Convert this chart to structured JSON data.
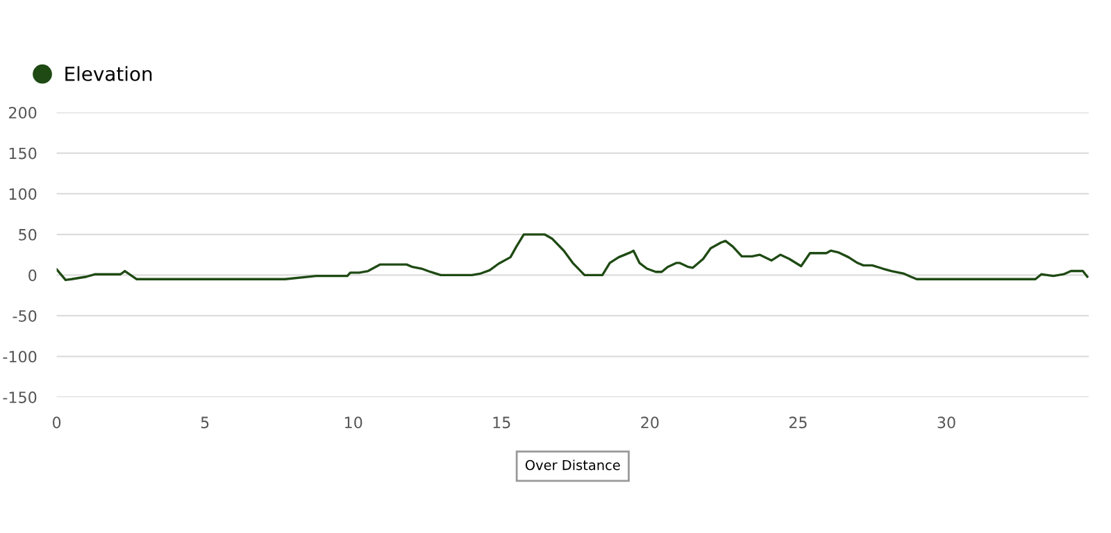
{
  "chart_data": {
    "type": "line",
    "legend": "top left",
    "grid": "y",
    "marker": "none",
    "line_style": "solid",
    "xlim": [
      0,
      34.8
    ],
    "xticks": [
      0,
      5,
      10,
      15,
      20,
      25,
      30
    ],
    "ylim": [
      -150,
      200
    ],
    "yticks": [
      -150,
      -100,
      -50,
      0,
      50,
      100,
      150,
      200
    ],
    "annotations": [
      "Over Distance"
    ],
    "series": [
      {
        "name": "Elevation",
        "color": "#1f4a14",
        "x": [
          0,
          0.3,
          0.5,
          1.0,
          1.3,
          2.15,
          2.3,
          2.7,
          7.7,
          8.75,
          9.8,
          9.9,
          10.2,
          10.5,
          10.9,
          11.8,
          12.0,
          12.3,
          12.6,
          12.95,
          14.0,
          14.3,
          14.6,
          14.9,
          15.3,
          15.5,
          15.75,
          16.45,
          16.7,
          17.1,
          17.4,
          17.8,
          18.4,
          18.65,
          18.95,
          19.35,
          19.45,
          19.65,
          19.9,
          20.2,
          20.4,
          20.6,
          20.9,
          21.0,
          21.3,
          21.45,
          21.8,
          22.05,
          22.4,
          22.55,
          22.8,
          23.1,
          23.45,
          23.7,
          24.1,
          24.4,
          24.7,
          25.1,
          25.4,
          25.95,
          26.1,
          26.35,
          26.7,
          27.0,
          27.2,
          27.5,
          27.85,
          28.15,
          28.55,
          28.8,
          29.0,
          33.0,
          33.2,
          33.4,
          33.6,
          33.95,
          34.2,
          34.6,
          34.75
        ],
        "values": [
          7,
          -6,
          -5,
          -2,
          1,
          1,
          5,
          -5,
          -5,
          -1,
          -1,
          3,
          3,
          5,
          13,
          13,
          10,
          8,
          4,
          0,
          0,
          2,
          6,
          14,
          22,
          35,
          50,
          50,
          45,
          30,
          15,
          0,
          0,
          15,
          22,
          28,
          30,
          15,
          8,
          4,
          4,
          10,
          15,
          15,
          10,
          9,
          20,
          33,
          40,
          42,
          35,
          23,
          23,
          25,
          18,
          25,
          20,
          11,
          27,
          27,
          30,
          28,
          22,
          15,
          12,
          12,
          8,
          5,
          2,
          -2,
          -5,
          -5,
          1,
          0,
          -1,
          1,
          5,
          5,
          -2
        ]
      }
    ]
  }
}
